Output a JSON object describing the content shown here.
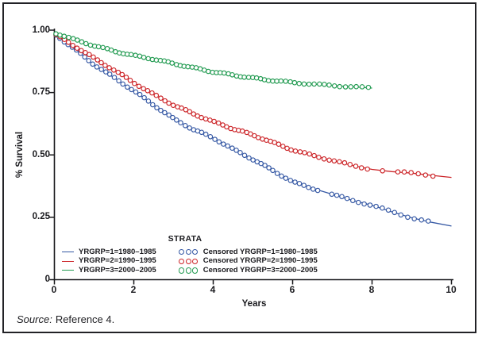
{
  "source": {
    "prefix": "Source:",
    "text": "Reference 4."
  },
  "chart_data": {
    "type": "line",
    "subtype": "kaplan-meier-survival-curves",
    "title": "",
    "xlabel": "Years",
    "ylabel": "% Survival",
    "xlim": [
      0,
      10
    ],
    "ylim": [
      0,
      1.0
    ],
    "grid": false,
    "xticks": [
      0,
      2,
      4,
      6,
      8,
      10
    ],
    "xtick_labels": [
      "0",
      "2",
      "4",
      "6",
      "8",
      "10"
    ],
    "yticks": [
      1.0,
      0.75,
      0.5,
      0.25,
      0
    ],
    "ytick_labels": [
      "1.00",
      "0.75",
      "0.50",
      "0.25",
      "0"
    ],
    "axis_color": "#17171a",
    "legend": {
      "title": "STRATA",
      "position": "bottom-inside",
      "line_entries": [
        {
          "label": "YRGRP=1=1980–1985",
          "color": "#3558a4"
        },
        {
          "label": "YRGRP=2=1990–1995",
          "color": "#cc2428"
        },
        {
          "label": "YRGRP=3=2000–2005",
          "color": "#239b52"
        }
      ],
      "censored_entries": [
        {
          "label": "Censored YRGRP=1=1980–1985",
          "color": "#3558a4"
        },
        {
          "label": "Censored YRGRP=2=1990–1995",
          "color": "#cc2428"
        },
        {
          "label": "Censored YRGRP=3=2000–2005",
          "color": "#239b52"
        }
      ]
    },
    "series": [
      {
        "name": "YRGRP=1=1980–1985",
        "color": "#3558a4",
        "marker": "open-circle-censored",
        "censor_marks_to_x": 9.55,
        "x": [
          0,
          0.5,
          1,
          1.5,
          2,
          2.5,
          3,
          3.5,
          4,
          4.5,
          5,
          5.5,
          6,
          6.5,
          7,
          7.5,
          8,
          8.5,
          9,
          9.5,
          10
        ],
        "y": [
          0.985,
          0.925,
          0.862,
          0.81,
          0.757,
          0.7,
          0.645,
          0.602,
          0.568,
          0.523,
          0.482,
          0.438,
          0.392,
          0.366,
          0.342,
          0.318,
          0.298,
          0.272,
          0.248,
          0.23,
          0.215
        ]
      },
      {
        "name": "YRGRP=2=1990–1995",
        "color": "#cc2428",
        "marker": "open-circle-censored",
        "censor_marks_to_x": 9.72,
        "x": [
          0,
          0.5,
          1,
          1.5,
          2,
          2.5,
          3,
          3.5,
          4,
          4.5,
          5,
          5.5,
          6,
          6.5,
          7,
          7.5,
          8,
          8.5,
          9,
          9.5,
          10
        ],
        "y": [
          0.985,
          0.937,
          0.888,
          0.84,
          0.79,
          0.742,
          0.7,
          0.665,
          0.633,
          0.605,
          0.58,
          0.55,
          0.52,
          0.498,
          0.478,
          0.458,
          0.442,
          0.433,
          0.427,
          0.418,
          0.41
        ]
      },
      {
        "name": "YRGRP=3=2000–2005",
        "color": "#239b52",
        "marker": "open-circle-censored",
        "censor_marks_to_x": 7.97,
        "x": [
          0,
          0.5,
          1,
          1.5,
          2,
          2.5,
          3,
          3.5,
          4,
          4.5,
          5,
          5.5,
          6,
          6.5,
          7,
          7.5,
          8
        ],
        "y": [
          0.99,
          0.962,
          0.938,
          0.916,
          0.898,
          0.884,
          0.866,
          0.849,
          0.833,
          0.82,
          0.808,
          0.798,
          0.79,
          0.784,
          0.778,
          0.773,
          0.768
        ]
      }
    ]
  }
}
